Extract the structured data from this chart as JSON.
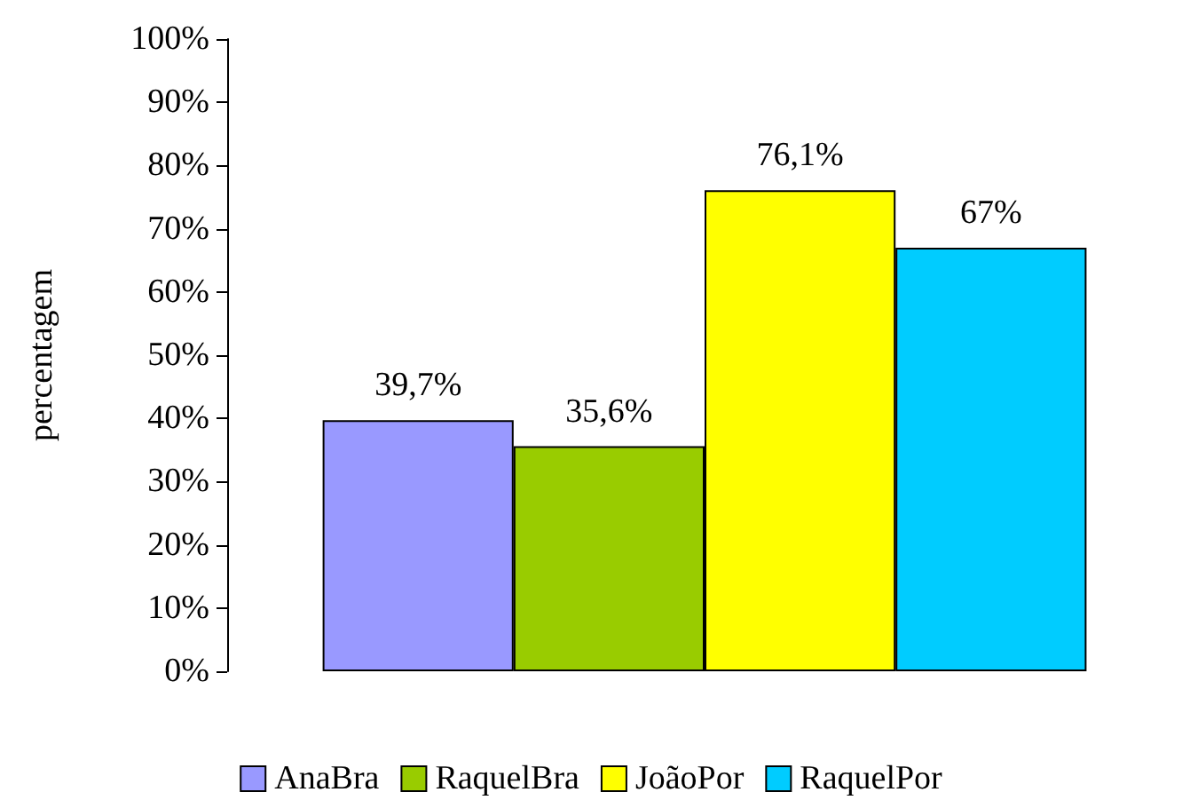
{
  "chart_data": {
    "type": "bar",
    "ylabel": "percentagem",
    "categories": [
      null
    ],
    "series": [
      {
        "name": "AnaBra",
        "color": "#9999ff",
        "values": [
          39.7
        ],
        "value_labels": [
          "39,7%"
        ]
      },
      {
        "name": "RaquelBra",
        "color": "#99cc00",
        "values": [
          35.6
        ],
        "value_labels": [
          "35,6%"
        ]
      },
      {
        "name": "JoãoPor",
        "color": "#ffff00",
        "values": [
          76.1
        ],
        "value_labels": [
          "76,1%"
        ]
      },
      {
        "name": "RaquelPor",
        "color": "#00ccff",
        "values": [
          67
        ],
        "value_labels": [
          "67%"
        ]
      }
    ],
    "ylim": [
      0,
      100
    ],
    "yticks": [
      {
        "value": 0,
        "label": "0%"
      },
      {
        "value": 10,
        "label": "10%"
      },
      {
        "value": 20,
        "label": "20%"
      },
      {
        "value": 30,
        "label": "30%"
      },
      {
        "value": 40,
        "label": "40%"
      },
      {
        "value": 50,
        "label": "50%"
      },
      {
        "value": 60,
        "label": "60%"
      },
      {
        "value": 70,
        "label": "70%"
      },
      {
        "value": 80,
        "label": "80%"
      },
      {
        "value": 90,
        "label": "90%"
      },
      {
        "value": 100,
        "label": "100%"
      }
    ],
    "grid": false,
    "legend": "bottom"
  }
}
